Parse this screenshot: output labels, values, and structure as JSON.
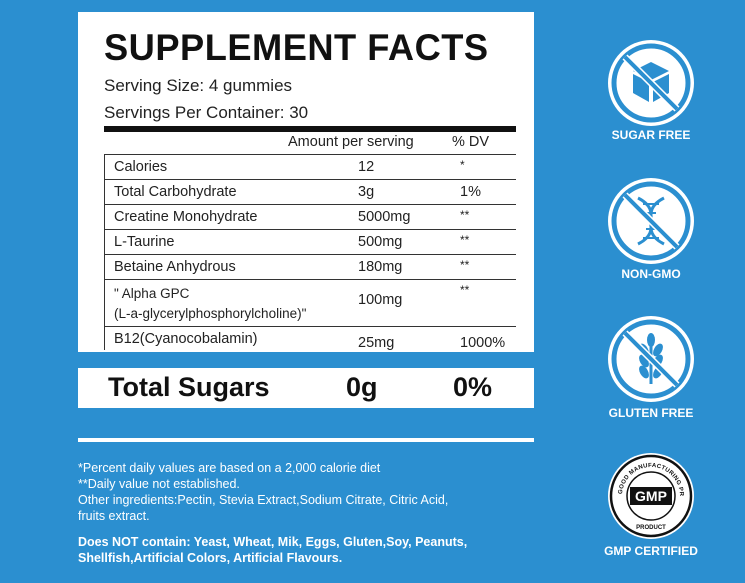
{
  "facts": {
    "title": "SUPPLEMENT FACTS",
    "serving_size": "Serving Size: 4 gummies",
    "servings_per_container": "Servings Per Container: 30",
    "header_amount": "Amount per serving",
    "header_dv": "% DV",
    "rows": [
      {
        "name": "Calories",
        "amount": "12",
        "dv": "*"
      },
      {
        "name": "Total Carbohydrate",
        "amount": "3g",
        "dv": "1%"
      },
      {
        "name": "Creatine Monohydrate",
        "amount": "5000mg",
        "dv": "**"
      },
      {
        "name": "L-Taurine",
        "amount": "500mg",
        "dv": "**"
      },
      {
        "name": "Betaine Anhydrous",
        "amount": "180mg",
        "dv": "**"
      },
      {
        "name_line1": "\" Alpha GPC",
        "name_line2": "(L-a-glycerylphosphorylcholine)\"",
        "amount": "100mg",
        "dv": "**"
      },
      {
        "name": "B12(Cyanocobalamin)",
        "amount": "25mg",
        "dv": "1000%"
      }
    ]
  },
  "sugars": {
    "label": "Total Sugars",
    "amount": "0g",
    "dv": "0%"
  },
  "notes": {
    "line1": "*Percent daily values are based on a 2,000 calorie diet",
    "line2": "**Daily value not established.",
    "line3": "Other ingredients:Pectin, Stevia Extract,Sodium Citrate, Citric Acid,",
    "line4": "fruits extract.",
    "line5": "Does NOT contain: Yeast, Wheat, Mik, Eggs, Gluten,Soy, Peanuts,",
    "line6": "Shellfish,Artificial Colors, Artificial Flavours."
  },
  "badges": [
    {
      "label": "SUGAR FREE",
      "icon": "cube-icon"
    },
    {
      "label": "NON-GMO",
      "icon": "dna-icon"
    },
    {
      "label": "GLUTEN FREE",
      "icon": "wheat-icon"
    },
    {
      "label": "GMP CERTIFIED",
      "icon": "gmp-seal-icon",
      "seal_center": "GMP",
      "seal_ring": "GOOD MANUFACTURING PRACTICE",
      "seal_bottom": "PRODUCT"
    }
  ],
  "colors": {
    "background": "#2b8fd0",
    "icon": "#2b8fd0",
    "panel": "#ffffff"
  }
}
